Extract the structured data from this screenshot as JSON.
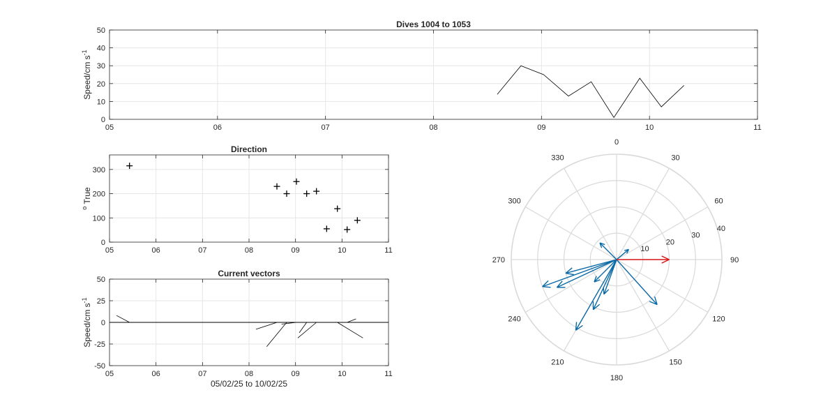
{
  "figure_title": "Dives 1004 to 1053",
  "colors": {
    "axis": "#262626",
    "grid": "#e6e6e6",
    "compass_grid": "#d9d9d9",
    "vector_blue": "#0b6aa6",
    "mean_red": "#d7191c",
    "line": "#000000"
  },
  "chart_data": [
    {
      "id": "speed",
      "type": "line",
      "title": "Dives 1004 to 1053",
      "xlabel": "",
      "ylabel": "Speed/cm s",
      "ylabel_sup": "-1",
      "xlim": [
        5,
        11
      ],
      "ylim": [
        0,
        50
      ],
      "grid": true,
      "xticks": [
        5,
        6,
        7,
        8,
        9,
        10,
        11
      ],
      "xtick_labels": [
        "05",
        "06",
        "07",
        "08",
        "09",
        "10",
        "11"
      ],
      "yticks": [
        0,
        10,
        20,
        30,
        40,
        50
      ],
      "ytick_labels": [
        "0",
        "10",
        "20",
        "30",
        "40",
        "50"
      ],
      "series": [
        {
          "x": [
            8.59,
            8.81,
            9.02,
            9.25,
            9.46,
            9.67,
            9.91,
            10.11,
            10.32
          ],
          "y": [
            14,
            30,
            25,
            13,
            21,
            1,
            23,
            7,
            19
          ]
        }
      ]
    },
    {
      "id": "direction",
      "type": "scatter",
      "title": "Direction",
      "xlabel": "",
      "ylabel": "True",
      "ylabel_sup": "o",
      "xlim": [
        5,
        11
      ],
      "ylim": [
        0,
        360
      ],
      "grid": true,
      "xticks": [
        5,
        6,
        7,
        8,
        9,
        10,
        11
      ],
      "xtick_labels": [
        "05",
        "06",
        "07",
        "08",
        "09",
        "10",
        "11"
      ],
      "yticks": [
        0,
        100,
        200,
        300
      ],
      "ytick_labels": [
        "0",
        "100",
        "200",
        "300"
      ],
      "marker": "+",
      "series": [
        {
          "x": [
            5.43,
            8.6,
            8.81,
            9.02,
            9.24,
            9.45,
            9.67,
            9.9,
            10.11,
            10.33
          ],
          "y": [
            315,
            230,
            200,
            250,
            200,
            210,
            55,
            138,
            52,
            90
          ]
        }
      ]
    },
    {
      "id": "vectors",
      "type": "line",
      "subtype": "stick-plot",
      "title": "Current vectors",
      "xlabel": "05/02/25 to 10/02/25",
      "ylabel": "Speed/cm s",
      "ylabel_sup": "-1",
      "xlim": [
        5,
        11
      ],
      "ylim": [
        -50,
        50
      ],
      "grid": true,
      "xticks": [
        5,
        6,
        7,
        8,
        9,
        10,
        11
      ],
      "xtick_labels": [
        "05",
        "06",
        "07",
        "08",
        "09",
        "10",
        "11"
      ],
      "yticks": [
        -50,
        -25,
        0,
        25,
        50
      ],
      "ytick_labels": [
        "-50",
        "-25",
        "0",
        "25",
        "50"
      ],
      "segments": [
        {
          "x0": 5.43,
          "y0": 0,
          "x1": 5.15,
          "y1": 8
        },
        {
          "x0": 8.6,
          "y0": 0,
          "x1": 8.15,
          "y1": -8
        },
        {
          "x0": 8.81,
          "y0": 0,
          "x1": 8.38,
          "y1": -28
        },
        {
          "x0": 9.02,
          "y0": 0,
          "x1": 8.7,
          "y1": -2
        },
        {
          "x0": 9.24,
          "y0": 0,
          "x1": 9.08,
          "y1": -12
        },
        {
          "x0": 9.45,
          "y0": 0,
          "x1": 9.05,
          "y1": -18
        },
        {
          "x0": 9.67,
          "y0": 0,
          "x1": 9.7,
          "y1": 0
        },
        {
          "x0": 9.9,
          "y0": 0,
          "x1": 10.45,
          "y1": -18
        },
        {
          "x0": 10.11,
          "y0": 0,
          "x1": 10.3,
          "y1": 4
        },
        {
          "x0": 10.33,
          "y0": 0,
          "x1": 11.0,
          "y1": 0
        }
      ]
    },
    {
      "id": "compass",
      "type": "compass",
      "title": "",
      "rlim": [
        0,
        40
      ],
      "r_ticks": [
        10,
        20,
        30,
        40
      ],
      "r_tick_labels": [
        "10",
        "20",
        "30",
        "40"
      ],
      "angle_ticks": [
        0,
        30,
        60,
        90,
        120,
        150,
        180,
        210,
        240,
        270,
        300,
        330
      ],
      "angle_tick_labels": [
        "0",
        "30",
        "60",
        "90",
        "120",
        "150",
        "180",
        "210",
        "240",
        "270",
        "300",
        "330"
      ],
      "vectors": [
        {
          "dir": 315,
          "speed": 9
        },
        {
          "dir": 50,
          "speed": 6
        },
        {
          "dir": 138,
          "speed": 23
        },
        {
          "dir": 200,
          "speed": 14
        },
        {
          "dir": 205,
          "speed": 21
        },
        {
          "dir": 210,
          "speed": 31
        },
        {
          "dir": 225,
          "speed": 12
        },
        {
          "dir": 245,
          "speed": 25
        },
        {
          "dir": 250,
          "speed": 30
        },
        {
          "dir": 255,
          "speed": 20
        }
      ],
      "mean_vector": {
        "dir": 90,
        "speed": 20
      }
    }
  ]
}
